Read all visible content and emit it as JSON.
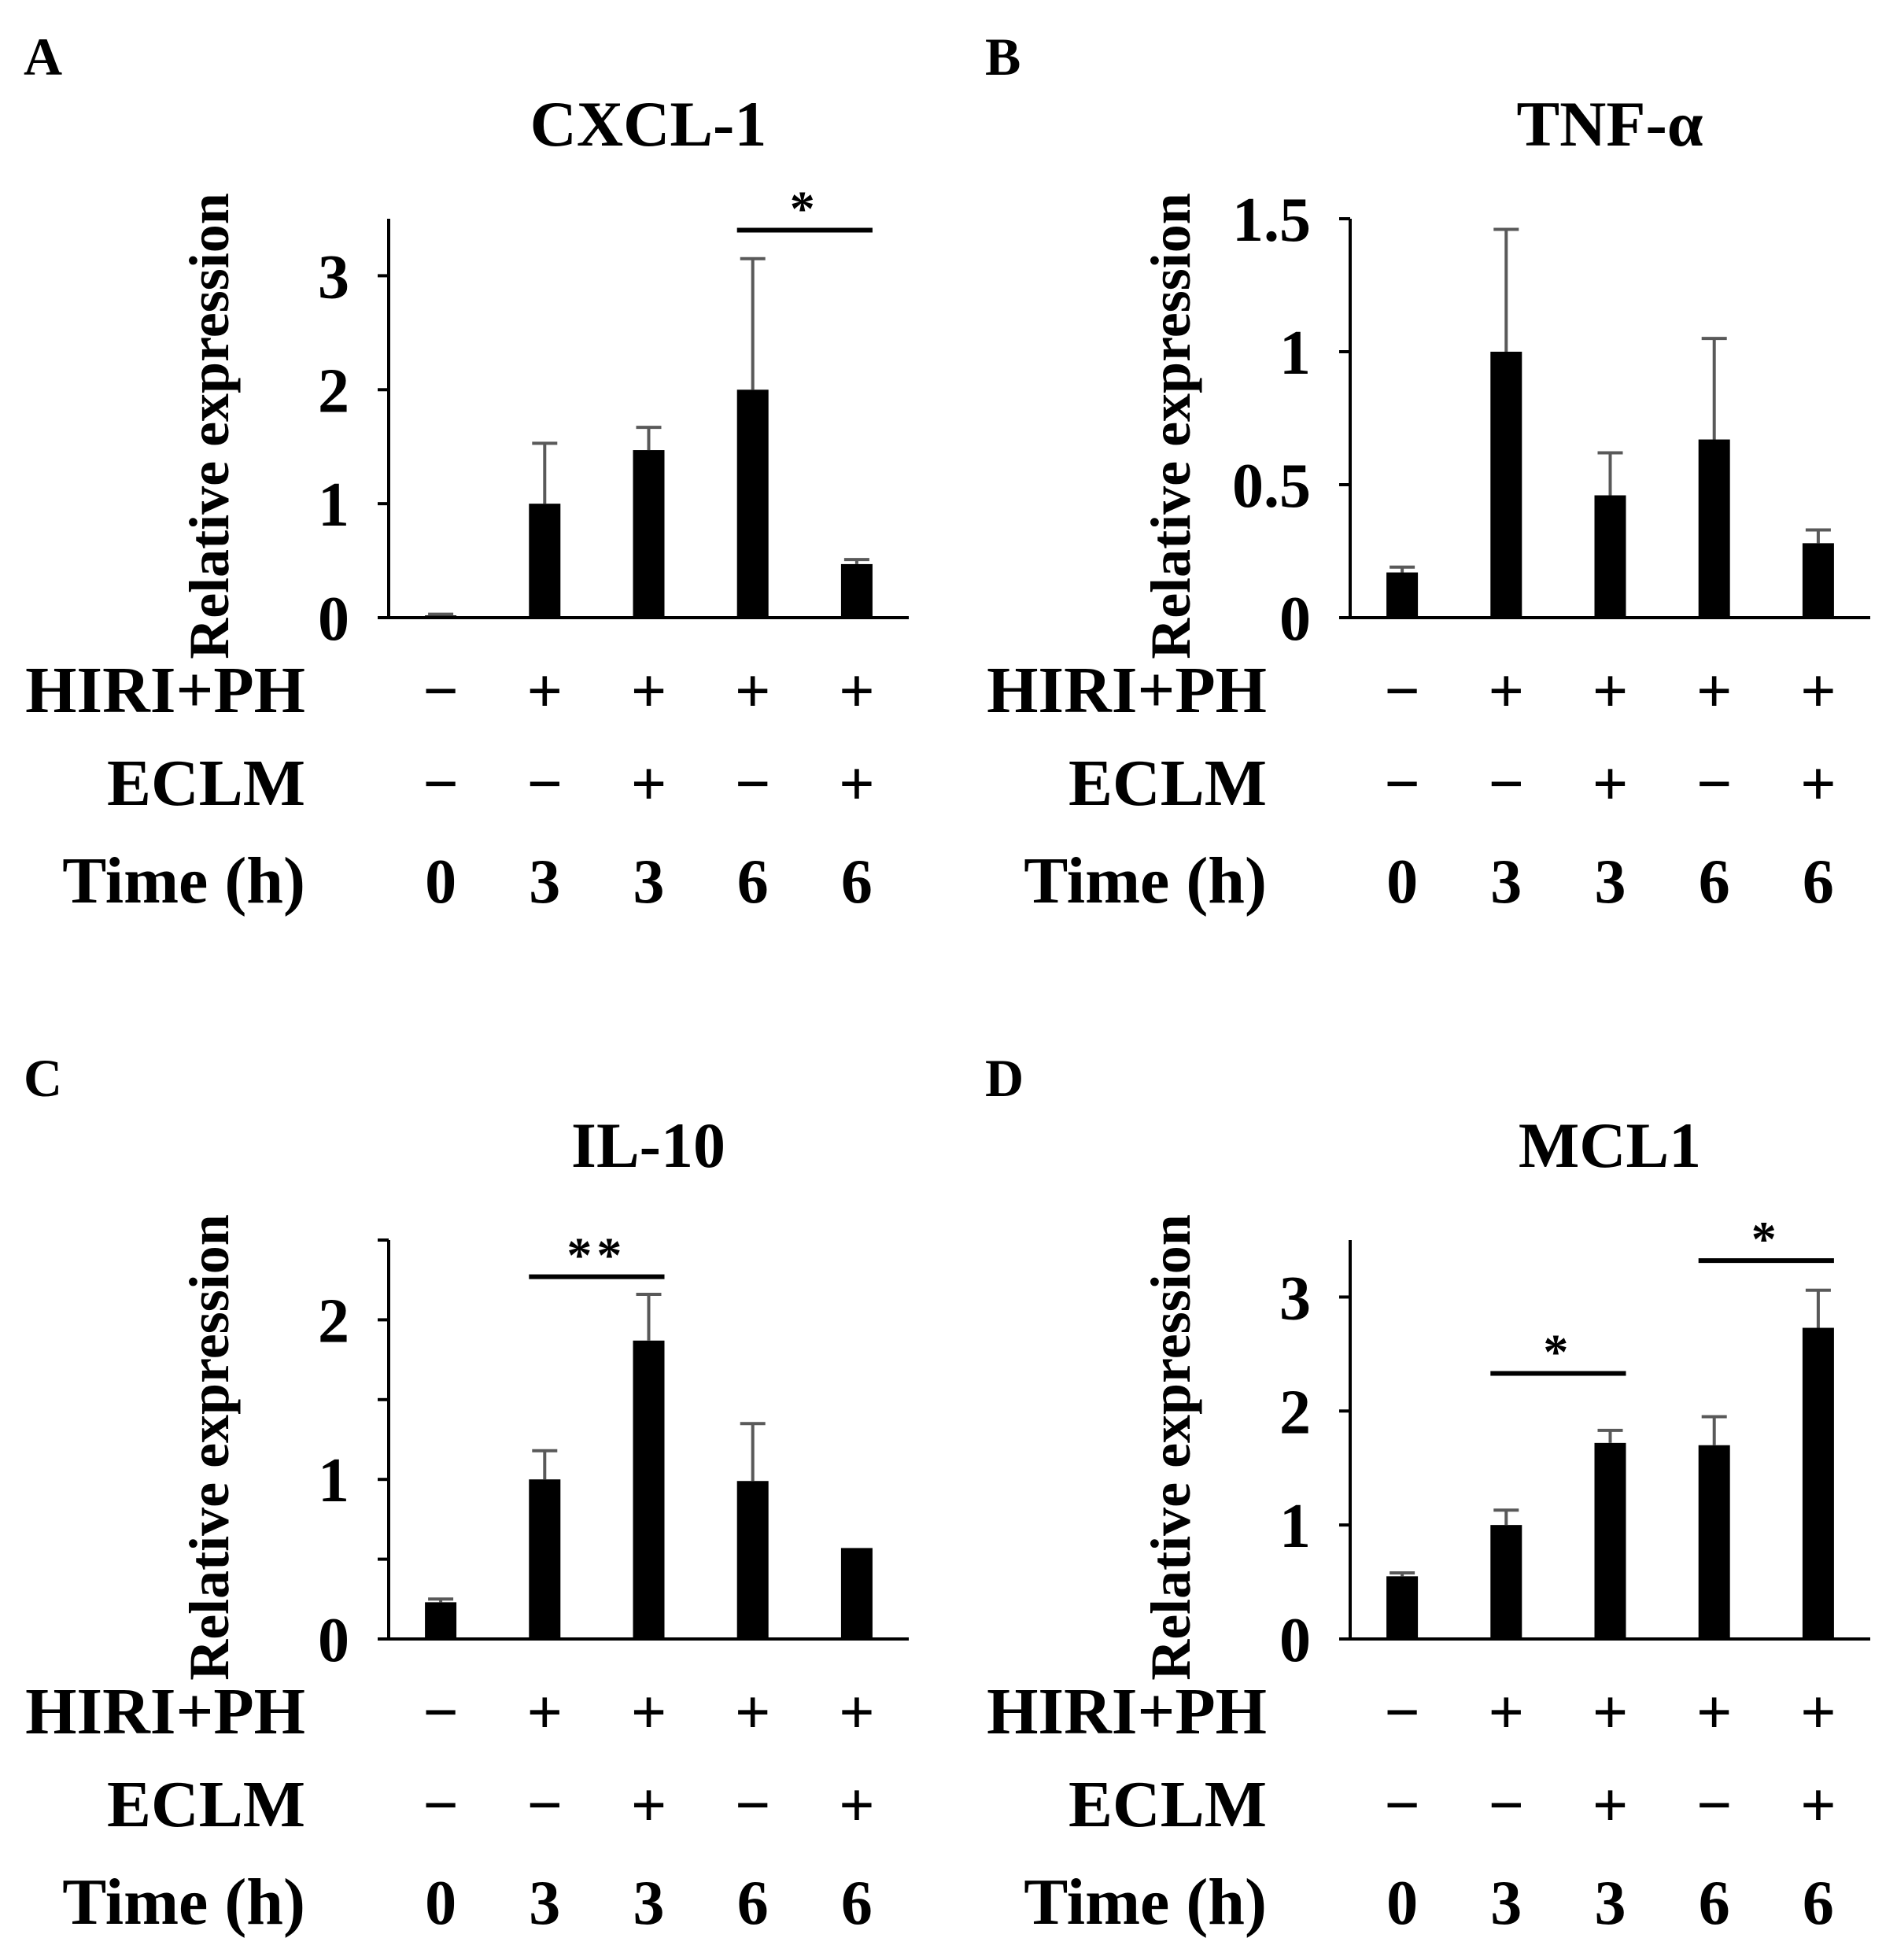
{
  "colors": {
    "bar": "#000000",
    "error_bar": "#595959",
    "axis": "#000000",
    "background": "#ffffff"
  },
  "row_labels": {
    "group": "HIRI+PH",
    "treatment": "ECLM",
    "time": "Time (h)"
  },
  "chart_data": [
    {
      "panel": "A",
      "type": "bar",
      "title": "CXCL-1",
      "ylabel": "Relative expression",
      "xlabel": "",
      "ylim": [
        0,
        3.5
      ],
      "yticks": [
        0,
        1,
        2,
        3
      ],
      "ytick_labels": [
        "0",
        "1",
        "2",
        "3"
      ],
      "minor_ticks": [],
      "categories": [
        "0 h",
        "3 h",
        "3 h + ECLM",
        "6 h",
        "6 h + ECLM"
      ],
      "hiri_ph": [
        "−",
        "+",
        "+",
        "+",
        "+"
      ],
      "eclm": [
        "−",
        "−",
        "+",
        "−",
        "+"
      ],
      "time": [
        "0",
        "3",
        "3",
        "6",
        "6"
      ],
      "values": [
        0.02,
        1.0,
        1.47,
        2.0,
        0.47
      ],
      "errors": [
        0.01,
        0.53,
        0.2,
        1.15,
        0.04
      ],
      "significance": [
        {
          "from": 3,
          "to": 4,
          "y": 3.4,
          "label": "*"
        }
      ]
    },
    {
      "panel": "B",
      "type": "bar",
      "title": "TNF-α",
      "ylabel": "Relative expression",
      "xlabel": "",
      "ylim": [
        0,
        1.5
      ],
      "yticks": [
        0,
        0.5,
        1,
        1.5
      ],
      "ytick_labels": [
        "0",
        "0.5",
        "1",
        "1.5"
      ],
      "minor_ticks": [],
      "categories": [
        "0 h",
        "3 h",
        "3 h + ECLM",
        "6 h",
        "6 h + ECLM"
      ],
      "hiri_ph": [
        "−",
        "+",
        "+",
        "+",
        "+"
      ],
      "eclm": [
        "−",
        "−",
        "+",
        "−",
        "+"
      ],
      "time": [
        "0",
        "3",
        "3",
        "6",
        "6"
      ],
      "values": [
        0.17,
        1.0,
        0.46,
        0.67,
        0.28
      ],
      "errors": [
        0.02,
        0.46,
        0.16,
        0.38,
        0.05
      ],
      "significance": []
    },
    {
      "panel": "C",
      "type": "bar",
      "title": "IL-10",
      "ylabel": "Relative expression",
      "xlabel": "",
      "ylim": [
        0,
        2.5
      ],
      "yticks": [
        0,
        1,
        2
      ],
      "ytick_labels": [
        "0",
        "1",
        "2"
      ],
      "minor_ticks": [
        0.5,
        1.5,
        2.5
      ],
      "categories": [
        "0 h",
        "3 h",
        "3 h + ECLM",
        "6 h",
        "6 h + ECLM"
      ],
      "hiri_ph": [
        "−",
        "+",
        "+",
        "+",
        "+"
      ],
      "eclm": [
        "−",
        "−",
        "+",
        "−",
        "+"
      ],
      "time": [
        "0",
        "3",
        "3",
        "6",
        "6"
      ],
      "values": [
        0.23,
        1.0,
        1.87,
        0.99,
        0.57
      ],
      "errors": [
        0.02,
        0.18,
        0.29,
        0.36,
        0.0
      ],
      "significance": [
        {
          "from": 1,
          "to": 2,
          "y": 2.27,
          "label": "**"
        }
      ]
    },
    {
      "panel": "D",
      "type": "bar",
      "title": "MCL1",
      "ylabel": "Relative expression",
      "xlabel": "",
      "ylim": [
        0,
        3.5
      ],
      "yticks": [
        0,
        1,
        2,
        3
      ],
      "ytick_labels": [
        "0",
        "1",
        "2",
        "3"
      ],
      "minor_ticks": [],
      "categories": [
        "0 h",
        "3 h",
        "3 h + ECLM",
        "6 h",
        "6 h + ECLM"
      ],
      "hiri_ph": [
        "−",
        "+",
        "+",
        "+",
        "+"
      ],
      "eclm": [
        "−",
        "−",
        "+",
        "−",
        "+"
      ],
      "time": [
        "0",
        "3",
        "3",
        "6",
        "6"
      ],
      "values": [
        0.55,
        1.0,
        1.72,
        1.7,
        2.73
      ],
      "errors": [
        0.03,
        0.13,
        0.11,
        0.25,
        0.33
      ],
      "significance": [
        {
          "from": 1,
          "to": 2,
          "y": 2.33,
          "label": "*"
        },
        {
          "from": 3,
          "to": 4,
          "y": 3.32,
          "label": "*"
        }
      ]
    }
  ]
}
